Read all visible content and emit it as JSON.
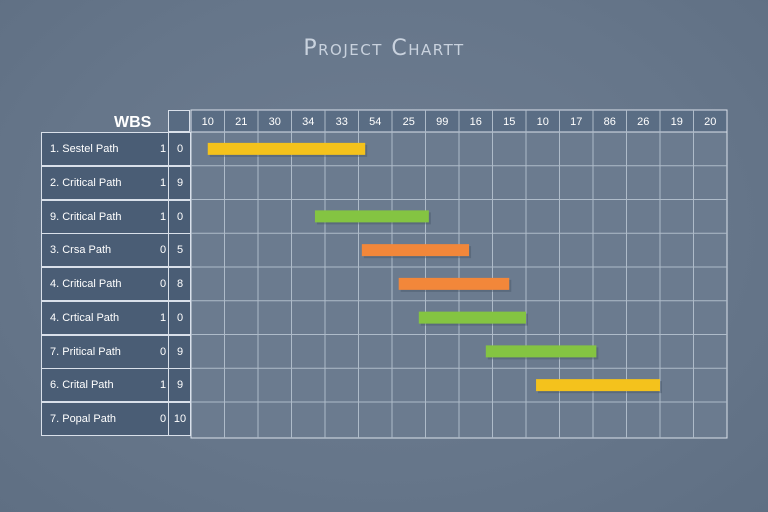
{
  "title": "Project Chartt",
  "wbs_label": "WBS",
  "columns": [
    "10",
    "21",
    "30",
    "34",
    "33",
    "54",
    "25",
    "99",
    "16",
    "15",
    "10",
    "17",
    "86",
    "26",
    "19",
    "20"
  ],
  "rows": [
    {
      "name": "1. Sestel Path",
      "c1": "1",
      "c2": "0"
    },
    {
      "name": "2. Critical Path",
      "c1": "1",
      "c2": "9"
    },
    {
      "name": "9. Critical Path",
      "c1": "1",
      "c2": "0"
    },
    {
      "name": "3. Crsa Path",
      "c1": "0",
      "c2": "5"
    },
    {
      "name": "4. Critical Path",
      "c1": "0",
      "c2": "8"
    },
    {
      "name": "4. Crtical Path",
      "c1": "1",
      "c2": "0"
    },
    {
      "name": "7. Pritical Path",
      "c1": "0",
      "c2": "9"
    },
    {
      "name": "6. Crital Path",
      "c1": "1",
      "c2": "9"
    },
    {
      "name": "7. Popal Path",
      "c1": "0",
      "c2": "10"
    }
  ],
  "colors": {
    "yellow": "#f4c21c",
    "green": "#84c442",
    "orange": "#f2873a"
  },
  "chart_data": {
    "type": "gantt",
    "title": "Project Chartt",
    "column_labels": [
      "10",
      "21",
      "30",
      "34",
      "33",
      "54",
      "25",
      "99",
      "16",
      "15",
      "10",
      "17",
      "86",
      "26",
      "19",
      "20"
    ],
    "tasks": [
      {
        "row": "1. Sestel Path",
        "start": 0.5,
        "end": 5.2,
        "color": "yellow"
      },
      {
        "row": "9. Critical Path",
        "start": 3.7,
        "end": 7.1,
        "color": "green"
      },
      {
        "row": "3. Crsa Path",
        "start": 5.1,
        "end": 8.3,
        "color": "orange"
      },
      {
        "row": "4. Critical Path",
        "start": 6.2,
        "end": 9.5,
        "color": "orange"
      },
      {
        "row": "4. Crtical Path",
        "start": 6.8,
        "end": 10.0,
        "color": "green"
      },
      {
        "row": "7. Pritical Path",
        "start": 8.8,
        "end": 12.1,
        "color": "green"
      },
      {
        "row": "6. Crital Path",
        "start": 10.3,
        "end": 14.0,
        "color": "yellow"
      }
    ]
  }
}
